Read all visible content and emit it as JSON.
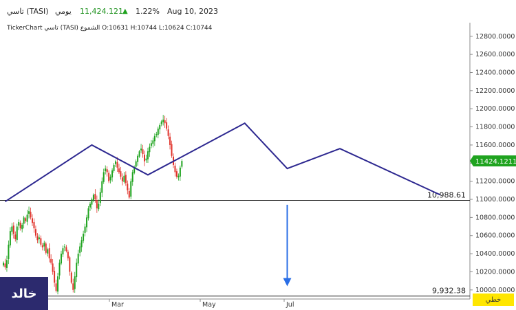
{
  "header": {
    "symbol": "تاسي (TASI)",
    "timeframe": "يومي",
    "price": "11,424.121",
    "change": "1.22%",
    "date": "Aug 10, 2023"
  },
  "ohlc_line": "TickerChart تاسي (TASI) الشموع O:10631 H:10744 L:10624 C:10744",
  "owner_label": "خالد",
  "mode_label": "خطي",
  "colors": {
    "up": "#1fa31f",
    "down": "#e0332b",
    "pattern": "#2d2890",
    "arrow": "#2a6ee6",
    "current_bg": "#1fa31f"
  },
  "chart_data": {
    "type": "candlestick",
    "title": "",
    "ylim": [
      9900,
      12950
    ],
    "y_ticks": [
      "12800.0000",
      "12600.0000",
      "12400.0000",
      "12200.0000",
      "12000.0000",
      "11800.0000",
      "11600.0000",
      "11400.0000",
      "11200.0000",
      "11000.0000",
      "10800.0000",
      "10600.0000",
      "10400.0000",
      "10200.0000",
      "10000.0000"
    ],
    "x_labels": [
      "Mar",
      "May",
      "Jul"
    ],
    "current_price_label": "11424.1211",
    "current_price": 11424.12,
    "levels": [
      {
        "label": "10,988.61",
        "value": 10988.61
      },
      {
        "label": "9,932.38",
        "value": 9932.38
      }
    ],
    "pattern_points": [
      [
        1,
        10975
      ],
      [
        52,
        11600
      ],
      [
        85,
        11270
      ],
      [
        142,
        11840
      ],
      [
        167,
        11340
      ],
      [
        198,
        11560
      ],
      [
        257,
        11050
      ]
    ],
    "arrow": {
      "x": 167,
      "from": 10940,
      "to": 10040
    },
    "closes": [
      10300,
      10250,
      10330,
      10500,
      10650,
      10700,
      10620,
      10560,
      10700,
      10750,
      10680,
      10720,
      10800,
      10760,
      10830,
      10870,
      10800,
      10740,
      10680,
      10600,
      10550,
      10580,
      10500,
      10470,
      10520,
      10410,
      10450,
      10350,
      10300,
      10200,
      10080,
      9990,
      10150,
      10300,
      10400,
      10460,
      10480,
      10430,
      10350,
      10200,
      10080,
      10000,
      10150,
      10300,
      10400,
      10480,
      10550,
      10620,
      10700,
      10800,
      10900,
      10950,
      11000,
      11050,
      11000,
      10900,
      10950,
      11080,
      11200,
      11300,
      11340,
      11300,
      11200,
      11250,
      11320,
      11380,
      11420,
      11350,
      11300,
      11250,
      11200,
      11260,
      11180,
      11100,
      11020,
      11200,
      11300,
      11350,
      11420,
      11480,
      11530,
      11560,
      11500,
      11420,
      11450,
      11530,
      11580,
      11620,
      11650,
      11700,
      11720,
      11780,
      11820,
      11860,
      11880,
      11840,
      11780,
      11700,
      11600,
      11480,
      11380,
      11300,
      11250,
      11260,
      11350,
      11424
    ]
  }
}
